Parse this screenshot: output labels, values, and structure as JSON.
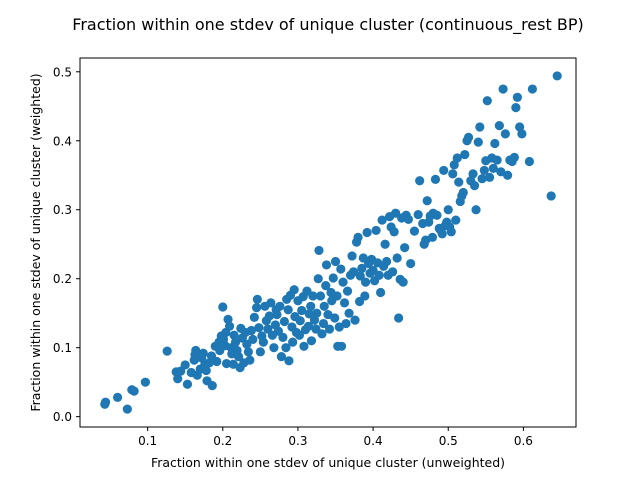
{
  "chart_data": {
    "type": "scatter",
    "title": "Fraction within one stdev of unique cluster (continuous_rest BP)",
    "xlabel": "Fraction within one stdev of unique cluster (unweighted)",
    "ylabel": "Fraction within one stdev of unique cluster (weighted)",
    "xlim": [
      0.01,
      0.67
    ],
    "ylim": [
      -0.015,
      0.52
    ],
    "xticks": [
      0.1,
      0.2,
      0.3,
      0.4,
      0.5,
      0.6
    ],
    "xtick_labels": [
      "0.1",
      "0.2",
      "0.3",
      "0.4",
      "0.5",
      "0.6"
    ],
    "yticks": [
      0.0,
      0.1,
      0.2,
      0.3,
      0.4,
      0.5
    ],
    "ytick_labels": [
      "0.0",
      "0.1",
      "0.2",
      "0.3",
      "0.4",
      "0.5"
    ],
    "grid": false,
    "marker_color": "#1f77b4",
    "points": [
      [
        0.043,
        0.018
      ],
      [
        0.044,
        0.021
      ],
      [
        0.06,
        0.028
      ],
      [
        0.073,
        0.011
      ],
      [
        0.079,
        0.039
      ],
      [
        0.082,
        0.037
      ],
      [
        0.097,
        0.05
      ],
      [
        0.126,
        0.095
      ],
      [
        0.138,
        0.065
      ],
      [
        0.14,
        0.055
      ],
      [
        0.144,
        0.066
      ],
      [
        0.15,
        0.075
      ],
      [
        0.153,
        0.047
      ],
      [
        0.158,
        0.064
      ],
      [
        0.162,
        0.082
      ],
      [
        0.163,
        0.09
      ],
      [
        0.164,
        0.096
      ],
      [
        0.166,
        0.06
      ],
      [
        0.17,
        0.069
      ],
      [
        0.172,
        0.085
      ],
      [
        0.174,
        0.092
      ],
      [
        0.176,
        0.075
      ],
      [
        0.178,
        0.067
      ],
      [
        0.179,
        0.052
      ],
      [
        0.182,
        0.078
      ],
      [
        0.185,
        0.088
      ],
      [
        0.186,
        0.045
      ],
      [
        0.19,
        0.102
      ],
      [
        0.192,
        0.08
      ],
      [
        0.195,
        0.108
      ],
      [
        0.196,
        0.096
      ],
      [
        0.198,
        0.117
      ],
      [
        0.2,
        0.159
      ],
      [
        0.201,
        0.112
      ],
      [
        0.203,
        0.103
      ],
      [
        0.204,
        0.122
      ],
      [
        0.205,
        0.077
      ],
      [
        0.207,
        0.141
      ],
      [
        0.209,
        0.131
      ],
      [
        0.211,
        0.1
      ],
      [
        0.212,
        0.091
      ],
      [
        0.214,
        0.076
      ],
      [
        0.215,
        0.118
      ],
      [
        0.217,
        0.108
      ],
      [
        0.219,
        0.096
      ],
      [
        0.221,
        0.087
      ],
      [
        0.223,
        0.071
      ],
      [
        0.224,
        0.128
      ],
      [
        0.226,
        0.114
      ],
      [
        0.228,
        0.078
      ],
      [
        0.23,
        0.122
      ],
      [
        0.232,
        0.105
      ],
      [
        0.234,
        0.094
      ],
      [
        0.236,
        0.082
      ],
      [
        0.238,
        0.125
      ],
      [
        0.24,
        0.112
      ],
      [
        0.242,
        0.144
      ],
      [
        0.245,
        0.158
      ],
      [
        0.246,
        0.17
      ],
      [
        0.248,
        0.129
      ],
      [
        0.25,
        0.094
      ],
      [
        0.252,
        0.117
      ],
      [
        0.254,
        0.108
      ],
      [
        0.256,
        0.16
      ],
      [
        0.258,
        0.139
      ],
      [
        0.26,
        0.127
      ],
      [
        0.262,
        0.146
      ],
      [
        0.264,
        0.165
      ],
      [
        0.266,
        0.118
      ],
      [
        0.268,
        0.1
      ],
      [
        0.27,
        0.133
      ],
      [
        0.271,
        0.155
      ],
      [
        0.272,
        0.148
      ],
      [
        0.274,
        0.124
      ],
      [
        0.276,
        0.16
      ],
      [
        0.278,
        0.087
      ],
      [
        0.28,
        0.115
      ],
      [
        0.282,
        0.138
      ],
      [
        0.284,
        0.1
      ],
      [
        0.285,
        0.17
      ],
      [
        0.287,
        0.155
      ],
      [
        0.288,
        0.081
      ],
      [
        0.29,
        0.176
      ],
      [
        0.292,
        0.13
      ],
      [
        0.293,
        0.108
      ],
      [
        0.295,
        0.184
      ],
      [
        0.296,
        0.145
      ],
      [
        0.298,
        0.122
      ],
      [
        0.3,
        0.168
      ],
      [
        0.302,
        0.118
      ],
      [
        0.303,
        0.139
      ],
      [
        0.305,
        0.154
      ],
      [
        0.307,
        0.174
      ],
      [
        0.308,
        0.102
      ],
      [
        0.31,
        0.126
      ],
      [
        0.312,
        0.182
      ],
      [
        0.314,
        0.131
      ],
      [
        0.315,
        0.149
      ],
      [
        0.317,
        0.16
      ],
      [
        0.318,
        0.11
      ],
      [
        0.32,
        0.175
      ],
      [
        0.322,
        0.14
      ],
      [
        0.324,
        0.127
      ],
      [
        0.325,
        0.15
      ],
      [
        0.327,
        0.2
      ],
      [
        0.328,
        0.241
      ],
      [
        0.33,
        0.175
      ],
      [
        0.332,
        0.12
      ],
      [
        0.334,
        0.135
      ],
      [
        0.335,
        0.16
      ],
      [
        0.337,
        0.19
      ],
      [
        0.338,
        0.22
      ],
      [
        0.34,
        0.148
      ],
      [
        0.342,
        0.127
      ],
      [
        0.344,
        0.18
      ],
      [
        0.345,
        0.168
      ],
      [
        0.347,
        0.201
      ],
      [
        0.349,
        0.143
      ],
      [
        0.35,
        0.225
      ],
      [
        0.352,
        0.175
      ],
      [
        0.353,
        0.102
      ],
      [
        0.355,
        0.13
      ],
      [
        0.357,
        0.214
      ],
      [
        0.358,
        0.102
      ],
      [
        0.36,
        0.195
      ],
      [
        0.362,
        0.165
      ],
      [
        0.364,
        0.135
      ],
      [
        0.366,
        0.182
      ],
      [
        0.368,
        0.15
      ],
      [
        0.37,
        0.205
      ],
      [
        0.372,
        0.233
      ],
      [
        0.374,
        0.21
      ],
      [
        0.376,
        0.14
      ],
      [
        0.378,
        0.253
      ],
      [
        0.38,
        0.26
      ],
      [
        0.382,
        0.167
      ],
      [
        0.383,
        0.204
      ],
      [
        0.385,
        0.215
      ],
      [
        0.387,
        0.23
      ],
      [
        0.389,
        0.175
      ],
      [
        0.39,
        0.195
      ],
      [
        0.392,
        0.267
      ],
      [
        0.394,
        0.222
      ],
      [
        0.396,
        0.208
      ],
      [
        0.398,
        0.228
      ],
      [
        0.4,
        0.212
      ],
      [
        0.402,
        0.197
      ],
      [
        0.404,
        0.27
      ],
      [
        0.406,
        0.223
      ],
      [
        0.408,
        0.205
      ],
      [
        0.41,
        0.18
      ],
      [
        0.412,
        0.285
      ],
      [
        0.414,
        0.218
      ],
      [
        0.416,
        0.25
      ],
      [
        0.418,
        0.225
      ],
      [
        0.42,
        0.205
      ],
      [
        0.422,
        0.29
      ],
      [
        0.424,
        0.275
      ],
      [
        0.426,
        0.21
      ],
      [
        0.428,
        0.268
      ],
      [
        0.43,
        0.295
      ],
      [
        0.432,
        0.23
      ],
      [
        0.434,
        0.143
      ],
      [
        0.436,
        0.199
      ],
      [
        0.438,
        0.288
      ],
      [
        0.44,
        0.195
      ],
      [
        0.442,
        0.245
      ],
      [
        0.444,
        0.292
      ],
      [
        0.447,
        0.286
      ],
      [
        0.45,
        0.222
      ],
      [
        0.455,
        0.269
      ],
      [
        0.46,
        0.293
      ],
      [
        0.462,
        0.342
      ],
      [
        0.466,
        0.28
      ],
      [
        0.468,
        0.25
      ],
      [
        0.47,
        0.256
      ],
      [
        0.472,
        0.313
      ],
      [
        0.474,
        0.282
      ],
      [
        0.476,
        0.291
      ],
      [
        0.479,
        0.26
      ],
      [
        0.48,
        0.295
      ],
      [
        0.483,
        0.344
      ],
      [
        0.485,
        0.292
      ],
      [
        0.488,
        0.273
      ],
      [
        0.49,
        0.27
      ],
      [
        0.492,
        0.265
      ],
      [
        0.494,
        0.357
      ],
      [
        0.496,
        0.277
      ],
      [
        0.498,
        0.282
      ],
      [
        0.5,
        0.3
      ],
      [
        0.502,
        0.275
      ],
      [
        0.504,
        0.268
      ],
      [
        0.506,
        0.352
      ],
      [
        0.508,
        0.365
      ],
      [
        0.51,
        0.285
      ],
      [
        0.512,
        0.375
      ],
      [
        0.514,
        0.34
      ],
      [
        0.516,
        0.312
      ],
      [
        0.518,
        0.32
      ],
      [
        0.52,
        0.325
      ],
      [
        0.522,
        0.38
      ],
      [
        0.525,
        0.4
      ],
      [
        0.527,
        0.405
      ],
      [
        0.53,
        0.342
      ],
      [
        0.533,
        0.352
      ],
      [
        0.535,
        0.335
      ],
      [
        0.537,
        0.3
      ],
      [
        0.54,
        0.398
      ],
      [
        0.542,
        0.42
      ],
      [
        0.545,
        0.345
      ],
      [
        0.548,
        0.357
      ],
      [
        0.55,
        0.371
      ],
      [
        0.552,
        0.458
      ],
      [
        0.555,
        0.347
      ],
      [
        0.558,
        0.375
      ],
      [
        0.56,
        0.36
      ],
      [
        0.562,
        0.396
      ],
      [
        0.565,
        0.372
      ],
      [
        0.568,
        0.422
      ],
      [
        0.57,
        0.355
      ],
      [
        0.573,
        0.475
      ],
      [
        0.576,
        0.41
      ],
      [
        0.579,
        0.35
      ],
      [
        0.582,
        0.372
      ],
      [
        0.585,
        0.37
      ],
      [
        0.588,
        0.376
      ],
      [
        0.59,
        0.448
      ],
      [
        0.592,
        0.463
      ],
      [
        0.595,
        0.42
      ],
      [
        0.598,
        0.41
      ],
      [
        0.608,
        0.37
      ],
      [
        0.612,
        0.475
      ],
      [
        0.637,
        0.32
      ],
      [
        0.645,
        0.494
      ]
    ]
  }
}
